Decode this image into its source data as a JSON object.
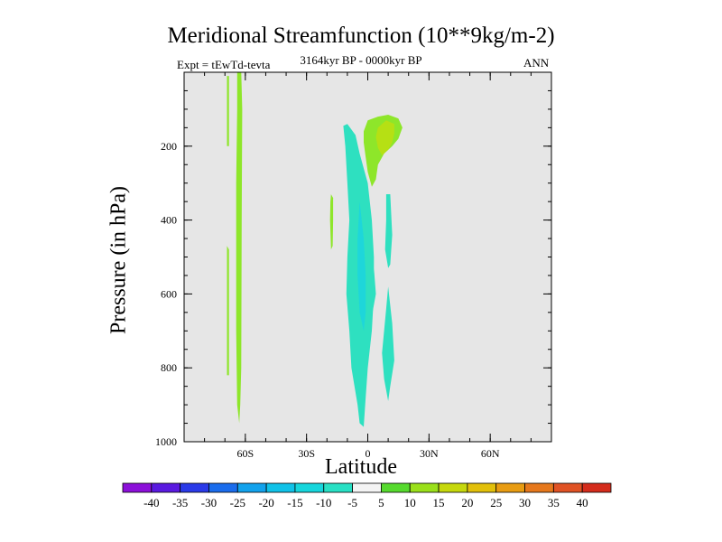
{
  "chart_data": {
    "type": "heatmap",
    "title": "Meridional Streamfunction (10**9kg/m-2)",
    "subtitle": "3164kyr BP - 0000kyr BP",
    "left_label": "Expt = tEwTd-tevta",
    "right_label": "ANN",
    "xlabel": "Latitude",
    "ylabel": "Pressure (in hPa)",
    "xlim": [
      -90,
      90
    ],
    "ylim": [
      1000,
      0
    ],
    "x_ticks": [
      {
        "value": -60,
        "label": "60S"
      },
      {
        "value": -30,
        "label": "30S"
      },
      {
        "value": 0,
        "label": "0"
      },
      {
        "value": 30,
        "label": "30N"
      },
      {
        "value": 60,
        "label": "60N"
      }
    ],
    "y_ticks": [
      {
        "value": 200,
        "label": "200"
      },
      {
        "value": 400,
        "label": "400"
      },
      {
        "value": 600,
        "label": "600"
      },
      {
        "value": 800,
        "label": "800"
      },
      {
        "value": 1000,
        "label": "1000"
      }
    ],
    "background_color": "#e6e6e6",
    "colorbar": {
      "labels": [
        "-40",
        "-35",
        "-30",
        "-25",
        "-20",
        "-15",
        "-10",
        "-5",
        "5",
        "10",
        "15",
        "20",
        "25",
        "30",
        "35",
        "40"
      ],
      "colors": [
        "#8c10d9",
        "#5a1ae0",
        "#2a3ae8",
        "#1a6cec",
        "#12a2ec",
        "#10c2e8",
        "#16d6dc",
        "#28e0c4",
        "#f4f4f4",
        "#56da2e",
        "#9ae01a",
        "#c6d80c",
        "#e2c00a",
        "#e89c12",
        "#e6781c",
        "#e05224",
        "#d42c1c"
      ]
    },
    "contours": [
      {
        "name": "cell-60s-main",
        "value": 5,
        "color": "#8ee62a",
        "points": [
          [
            -64,
            0
          ],
          [
            -62,
            0
          ],
          [
            -61.5,
            100
          ],
          [
            -61.8,
            400
          ],
          [
            -62,
            800
          ],
          [
            -62.5,
            900
          ],
          [
            -63,
            950
          ],
          [
            -64,
            900
          ],
          [
            -64.5,
            700
          ],
          [
            -64.5,
            300
          ],
          [
            -64,
            100
          ]
        ]
      },
      {
        "name": "cell-60s-strip",
        "value": 5,
        "color": "#8ee62a",
        "points": [
          [
            -69,
            10
          ],
          [
            -68,
            10
          ],
          [
            -68,
            100
          ],
          [
            -68,
            200
          ],
          [
            -69,
            200
          ],
          [
            -69,
            100
          ]
        ]
      },
      {
        "name": "cell-60s-lower-strip",
        "value": 5,
        "color": "#8ee62a",
        "points": [
          [
            -69,
            470
          ],
          [
            -68,
            480
          ],
          [
            -68,
            820
          ],
          [
            -69,
            820
          ]
        ]
      },
      {
        "name": "cell-sh-tropics",
        "value": 5,
        "color": "#8ee62a",
        "points": [
          [
            -18,
            330
          ],
          [
            -17,
            340
          ],
          [
            -17,
            400
          ],
          [
            -17.2,
            470
          ],
          [
            -18,
            480
          ],
          [
            -18.5,
            400
          ],
          [
            -18.3,
            350
          ]
        ]
      },
      {
        "name": "cell-nh-upper",
        "value": 5,
        "color": "#8ee62a",
        "points": [
          [
            -2,
            160
          ],
          [
            0,
            130
          ],
          [
            5,
            120
          ],
          [
            10,
            115
          ],
          [
            15,
            125
          ],
          [
            17,
            150
          ],
          [
            15,
            180
          ],
          [
            12,
            200
          ],
          [
            8,
            220
          ],
          [
            5,
            250
          ],
          [
            4,
            290
          ],
          [
            2,
            310
          ],
          [
            0,
            270
          ],
          [
            -1,
            230
          ],
          [
            -2,
            190
          ]
        ]
      },
      {
        "name": "cell-nh-upper-core",
        "value": 10,
        "color": "#b6e014",
        "points": [
          [
            5,
            150
          ],
          [
            9,
            130
          ],
          [
            13,
            140
          ],
          [
            13,
            165
          ],
          [
            12,
            190
          ],
          [
            10,
            210
          ],
          [
            7,
            225
          ],
          [
            5,
            205
          ],
          [
            4,
            175
          ]
        ]
      },
      {
        "name": "cell-equatorial",
        "value": -5,
        "color": "#2ee0c0",
        "points": [
          [
            -12,
            145
          ],
          [
            -10,
            140
          ],
          [
            -6,
            170
          ],
          [
            -4,
            220
          ],
          [
            0,
            300
          ],
          [
            2,
            400
          ],
          [
            3,
            500
          ],
          [
            3,
            600
          ],
          [
            2,
            700
          ],
          [
            0,
            800
          ],
          [
            -1,
            880
          ],
          [
            -2,
            960
          ],
          [
            -4,
            950
          ],
          [
            -5,
            900
          ],
          [
            -8,
            800
          ],
          [
            -9,
            700
          ],
          [
            -10.5,
            600
          ],
          [
            -10,
            500
          ],
          [
            -9,
            400
          ],
          [
            -10,
            300
          ],
          [
            -11,
            200
          ]
        ]
      },
      {
        "name": "cell-equatorial-core",
        "value": -10,
        "color": "#1ed6da",
        "points": [
          [
            -4,
            350
          ],
          [
            -2,
            450
          ],
          [
            -1,
            550
          ],
          [
            -1,
            650
          ],
          [
            -2,
            700
          ],
          [
            -4,
            650
          ],
          [
            -5,
            550
          ],
          [
            -5,
            450
          ]
        ]
      },
      {
        "name": "cell-nh-mid",
        "value": -5,
        "color": "#2ee0c0",
        "points": [
          [
            9,
            330
          ],
          [
            11,
            330
          ],
          [
            12,
            440
          ],
          [
            11,
            520
          ],
          [
            10,
            530
          ],
          [
            8.5,
            480
          ],
          [
            9,
            400
          ]
        ]
      },
      {
        "name": "cell-nh-equator-low",
        "value": -5,
        "color": "#2ee0c0",
        "points": [
          [
            3,
            530
          ],
          [
            4,
            600
          ],
          [
            2,
            660
          ]
        ]
      },
      {
        "name": "cell-nh-low",
        "value": -5,
        "color": "#2ee0c0",
        "points": [
          [
            10,
            580
          ],
          [
            12,
            680
          ],
          [
            13,
            780
          ],
          [
            11,
            850
          ],
          [
            10,
            890
          ],
          [
            8,
            830
          ],
          [
            7,
            760
          ],
          [
            8,
            700
          ],
          [
            9,
            640
          ]
        ]
      }
    ]
  }
}
